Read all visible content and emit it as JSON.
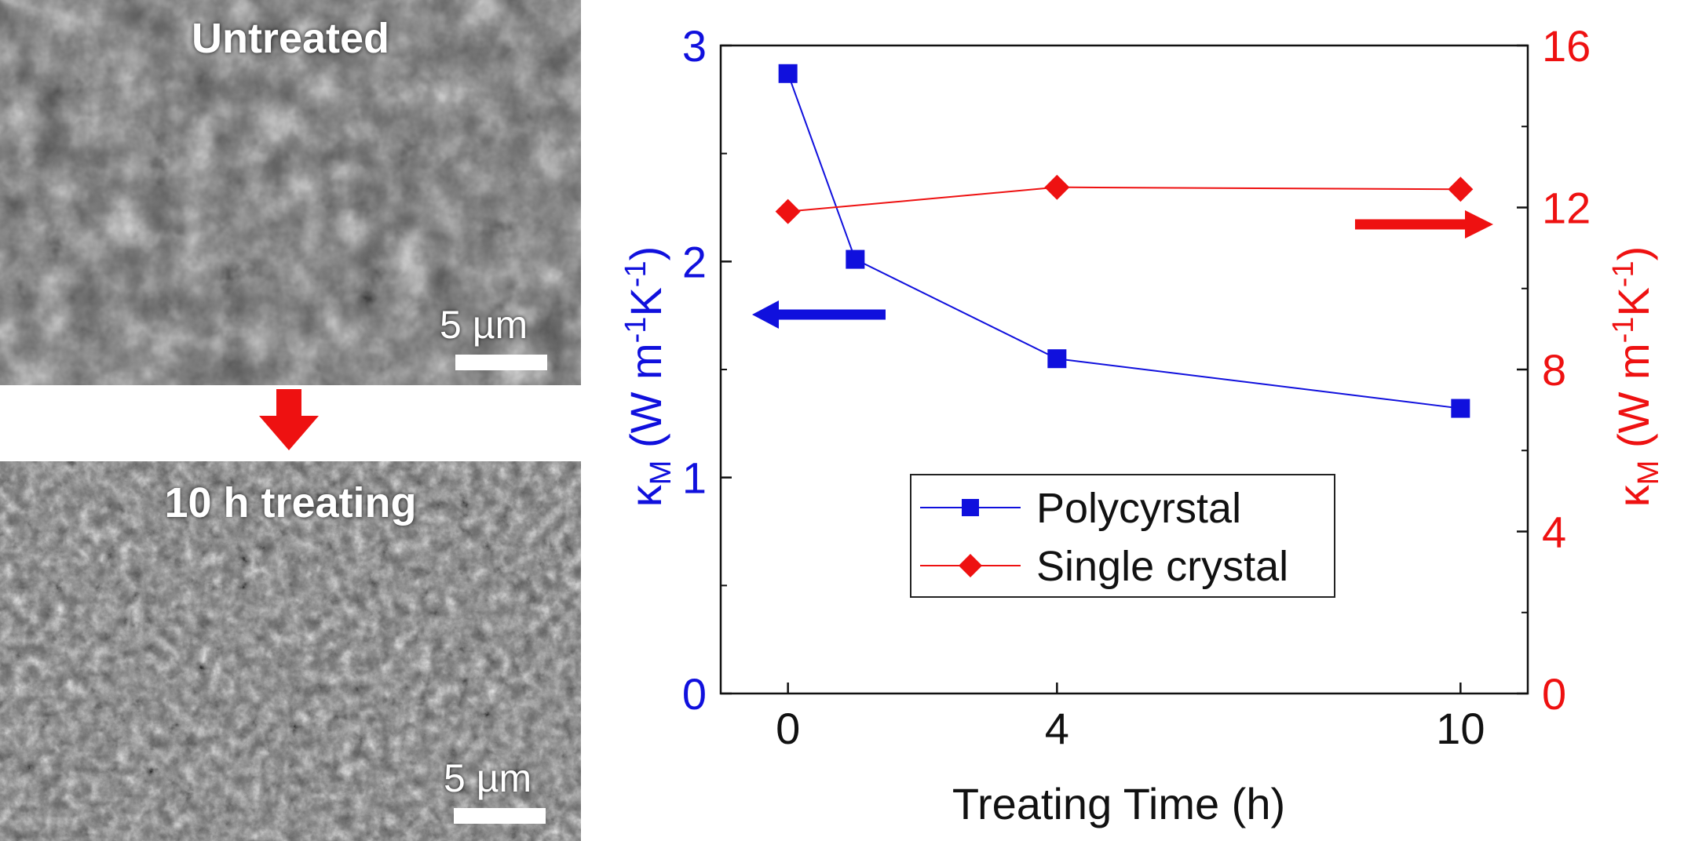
{
  "figure": {
    "top_image_label": "Untreated",
    "bottom_image_label": "10 h treating",
    "scale_bar_label": "5 µm",
    "arrow_color": "#ee1111"
  },
  "chart_data": {
    "type": "line",
    "x_axis": {
      "label": "Treating Time (h)",
      "tick_labels": [
        "0",
        "4",
        "10"
      ],
      "tick_values": [
        0,
        4,
        10
      ],
      "range": [
        -1,
        11
      ]
    },
    "y_axis_left": {
      "label_main": "κ",
      "label_sub": "M",
      "label_rest": " (W m",
      "label_exp1": "-1",
      "label_mid": "K",
      "label_exp2": "-1",
      "label_close": ")",
      "range": [
        0,
        3
      ],
      "tick_labels": [
        "0",
        "1",
        "2",
        "3"
      ],
      "tick_values": [
        0,
        1,
        2,
        3
      ],
      "color": "#1010dd"
    },
    "y_axis_right": {
      "label_main": "κ",
      "label_sub": "M",
      "label_rest": " (W m",
      "label_exp1": "-1",
      "label_mid": "K",
      "label_exp2": "-1",
      "label_close": ")",
      "range": [
        0,
        16
      ],
      "tick_labels": [
        "0",
        "4",
        "8",
        "12",
        "16"
      ],
      "tick_values": [
        0,
        4,
        8,
        12,
        16
      ],
      "color": "#ee1111"
    },
    "series": [
      {
        "name": "Polycyrstal",
        "axis": "left",
        "marker": "square",
        "color": "#1010dd",
        "x": [
          0,
          1,
          4,
          10
        ],
        "y": [
          2.87,
          2.01,
          1.55,
          1.32
        ]
      },
      {
        "name": "Single crystal",
        "axis": "right",
        "marker": "diamond",
        "color": "#ee1111",
        "x": [
          0,
          4,
          10
        ],
        "y": [
          11.9,
          12.5,
          12.45
        ]
      }
    ],
    "legend": {
      "placement": "bottom-center"
    },
    "annotations": [
      {
        "type": "arrow",
        "direction": "left",
        "points_to": "left axis",
        "color": "#1010dd"
      },
      {
        "type": "arrow",
        "direction": "right",
        "points_to": "right axis",
        "color": "#ee1111"
      }
    ]
  }
}
